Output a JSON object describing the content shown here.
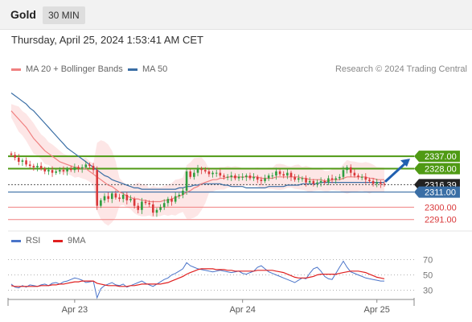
{
  "header": {
    "instrument": "Gold",
    "timeframe": "30 MIN",
    "timestamp": "Thursday, April 25, 2024 1:53:41 AM CET"
  },
  "legend": {
    "ma20_label": "MA 20 + Bollinger Bands",
    "ma50_label": "MA 50",
    "credit": "Research © 2024 Trading Central"
  },
  "rsi_legend": {
    "rsi_label": "RSI",
    "ma9_label": "9MA"
  },
  "colors": {
    "ma20": "#f08080",
    "ma50": "#3a6ea5",
    "bands": "#fde0e0",
    "up_candle": "#2e9e3f",
    "down_candle": "#d9383a",
    "resistance": "#4f9a14",
    "support_blue": "#3a6ea5",
    "support_red": "#f08080",
    "arrow": "#2060b0"
  },
  "chart_data": [
    {
      "type": "candlestick",
      "ylim": [
        2285,
        2395
      ],
      "x_ticks": [
        "Apr 23",
        "Apr 24",
        "Apr 25"
      ],
      "levels": [
        {
          "label": "2337.00",
          "value": 2337,
          "kind": "resistance"
        },
        {
          "label": "2328.00",
          "value": 2328,
          "kind": "resistance"
        },
        {
          "label": "2316.39",
          "value": 2316.39,
          "kind": "last_price"
        },
        {
          "label": "2311.00",
          "value": 2311,
          "kind": "pivot"
        },
        {
          "label": "2300.00",
          "value": 2300,
          "kind": "support"
        },
        {
          "label": "2291.00",
          "value": 2291,
          "kind": "support"
        }
      ],
      "close": [
        2338,
        2336,
        2333,
        2334,
        2331,
        2330,
        2329,
        2330,
        2328,
        2326,
        2327,
        2325,
        2326,
        2327,
        2326,
        2328,
        2327,
        2329,
        2328,
        2329,
        2331,
        2330,
        2327,
        2301,
        2305,
        2308,
        2306,
        2310,
        2307,
        2306,
        2309,
        2305,
        2306,
        2301,
        2298,
        2304,
        2303,
        2302,
        2296,
        2298,
        2300,
        2303,
        2306,
        2304,
        2308,
        2309,
        2312,
        2326,
        2322,
        2325,
        2328,
        2327,
        2326,
        2324,
        2325,
        2325,
        2323,
        2322,
        2322,
        2323,
        2321,
        2322,
        2322,
        2323,
        2321,
        2322,
        2320,
        2319,
        2321,
        2323,
        2323,
        2326,
        2324,
        2323,
        2325,
        2322,
        2320,
        2321,
        2321,
        2318,
        2319,
        2317,
        2318,
        2319,
        2318,
        2321,
        2320,
        2321,
        2322,
        2327,
        2329,
        2325,
        2323,
        2322,
        2322,
        2320,
        2319,
        2317,
        2318,
        2317,
        2316.39
      ],
      "ma20": [
        2370,
        2367,
        2364,
        2361,
        2358,
        2354,
        2350,
        2347,
        2344,
        2341,
        2339,
        2337,
        2335,
        2333,
        2332,
        2331,
        2330,
        2329,
        2329,
        2328,
        2328,
        2326,
        2324,
        2322,
        2320,
        2318,
        2316,
        2315,
        2313,
        2311,
        2310,
        2308,
        2307,
        2306,
        2306,
        2305,
        2305,
        2304,
        2304,
        2304,
        2304,
        2305,
        2305,
        2306,
        2307,
        2308,
        2309,
        2311,
        2312,
        2314,
        2315,
        2317,
        2318,
        2319,
        2320,
        2320,
        2321,
        2321,
        2322,
        2322,
        2322,
        2322,
        2322,
        2322,
        2322,
        2322,
        2322,
        2321,
        2321,
        2321,
        2321,
        2322,
        2322,
        2322,
        2322,
        2322,
        2322,
        2322,
        2321,
        2321,
        2320,
        2320,
        2320,
        2320,
        2319,
        2319,
        2320,
        2320,
        2320,
        2321,
        2322,
        2322,
        2322,
        2322,
        2322,
        2322,
        2321,
        2321,
        2320,
        2320,
        2320
      ],
      "ma50": [
        2383,
        2381,
        2379,
        2377,
        2375,
        2372,
        2370,
        2367,
        2364,
        2361,
        2358,
        2355,
        2352,
        2349,
        2346,
        2343,
        2341,
        2339,
        2337,
        2335,
        2333,
        2331,
        2329,
        2327,
        2325,
        2323,
        2322,
        2320,
        2319,
        2318,
        2317,
        2316,
        2315,
        2314,
        2314,
        2313,
        2313,
        2313,
        2313,
        2313,
        2313,
        2313,
        2313,
        2313,
        2313,
        2314,
        2314,
        2315,
        2315,
        2316,
        2316,
        2317,
        2317,
        2317,
        2317,
        2317,
        2317,
        2316,
        2316,
        2315,
        2315,
        2315,
        2315,
        2314,
        2314,
        2314,
        2314,
        2314,
        2314,
        2315,
        2315,
        2315,
        2315,
        2315,
        2316,
        2316,
        2316,
        2316,
        2317,
        2317,
        2317,
        2317,
        2317,
        2318,
        2318,
        2318,
        2318,
        2318,
        2318,
        2318,
        2318,
        2318,
        2318,
        2318,
        2318,
        2318,
        2318,
        2318,
        2318,
        2318,
        2318
      ]
    },
    {
      "type": "line",
      "name": "RSI",
      "ylim": [
        20,
        80
      ],
      "y_ticks": [
        "70",
        "50",
        "30"
      ],
      "x_ticks": [
        "Apr 23",
        "Apr 24",
        "Apr 25"
      ],
      "series": [
        {
          "name": "RSI",
          "values": [
            38,
            34,
            33,
            36,
            34,
            37,
            36,
            35,
            37,
            38,
            36,
            39,
            40,
            38,
            41,
            42,
            44,
            46,
            45,
            43,
            40,
            41,
            42,
            20,
            32,
            36,
            38,
            40,
            37,
            36,
            38,
            34,
            36,
            38,
            40,
            42,
            39,
            37,
            35,
            38,
            41,
            44,
            46,
            50,
            52,
            55,
            58,
            66,
            62,
            60,
            58,
            57,
            56,
            55,
            54,
            55,
            56,
            55,
            54,
            53,
            54,
            55,
            52,
            51,
            53,
            55,
            60,
            62,
            58,
            54,
            52,
            50,
            48,
            46,
            44,
            42,
            40,
            43,
            46,
            45,
            52,
            58,
            60,
            55,
            48,
            45,
            44,
            52,
            60,
            68,
            60,
            54,
            52,
            50,
            48,
            46,
            45,
            44,
            43,
            42,
            42
          ]
        },
        {
          "name": "9MA",
          "values": [
            36,
            35,
            35,
            35,
            35,
            35,
            35,
            35,
            36,
            36,
            36,
            37,
            37,
            38,
            38,
            39,
            40,
            41,
            41,
            42,
            42,
            42,
            42,
            39,
            38,
            37,
            36,
            36,
            36,
            35,
            35,
            35,
            36,
            36,
            37,
            38,
            38,
            38,
            38,
            38,
            38,
            39,
            40,
            42,
            44,
            46,
            48,
            51,
            53,
            55,
            57,
            58,
            58,
            58,
            58,
            57,
            57,
            57,
            56,
            56,
            55,
            55,
            55,
            55,
            55,
            55,
            56,
            56,
            56,
            56,
            56,
            55,
            54,
            53,
            51,
            49,
            47,
            46,
            46,
            46,
            47,
            48,
            50,
            51,
            51,
            51,
            51,
            51,
            52,
            53,
            54,
            55,
            55,
            55,
            54,
            53,
            51,
            49,
            47,
            46,
            45
          ]
        }
      ]
    }
  ]
}
